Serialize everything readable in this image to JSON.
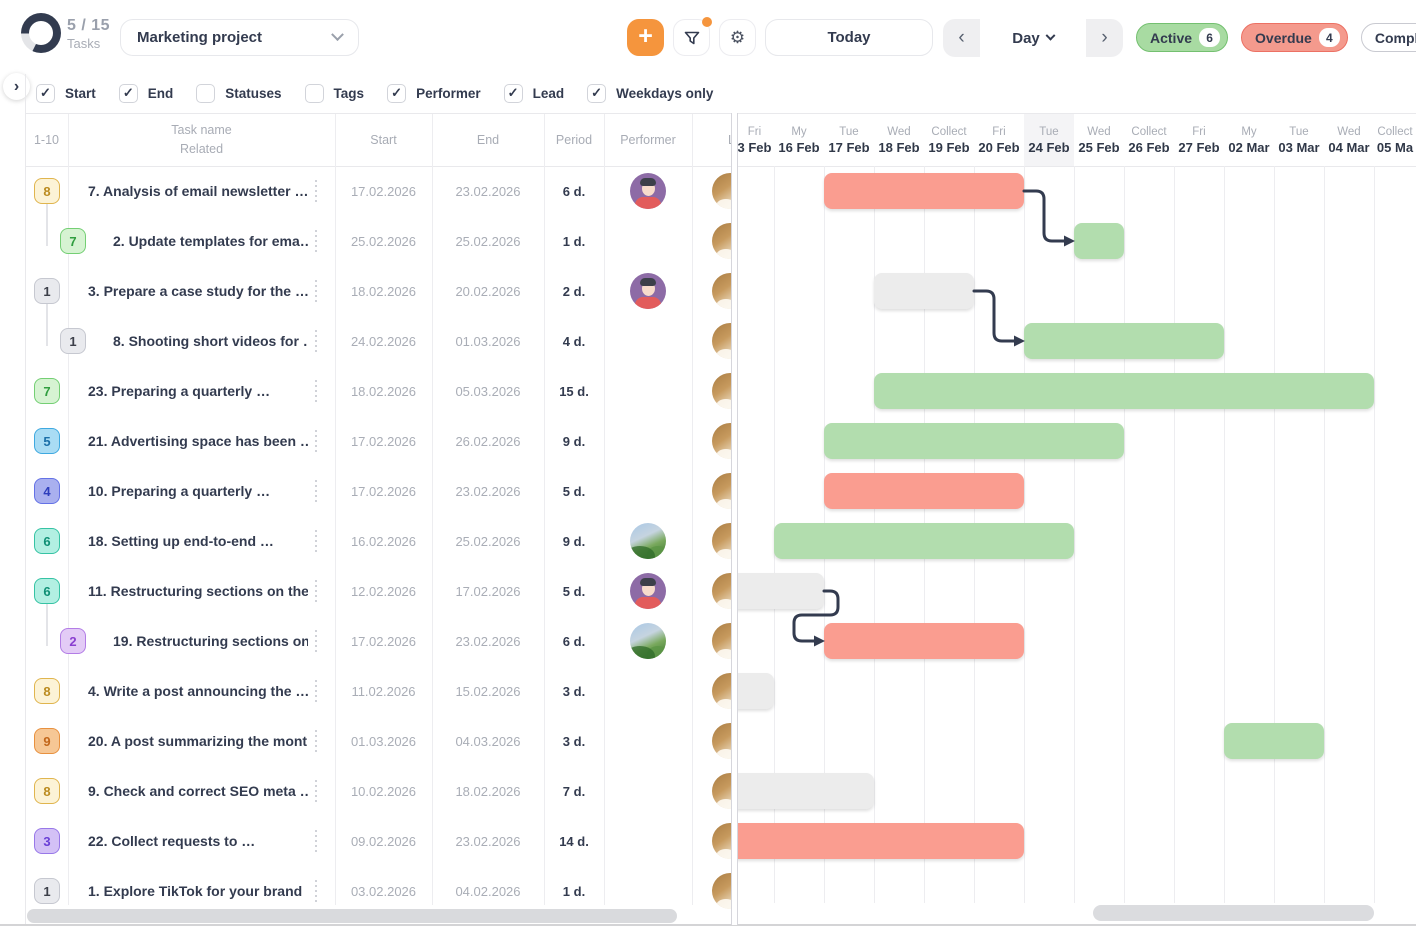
{
  "topbar": {
    "tasks_progress": "5 / 15",
    "tasks_label": "Tasks",
    "project": "Marketing project",
    "today": "Today",
    "view_mode": "Day",
    "status_filters": [
      {
        "label": "Active",
        "count": "6",
        "style": "active"
      },
      {
        "label": "Overdue",
        "count": "4",
        "style": "overdue"
      },
      {
        "label": "Comple",
        "count": "",
        "style": "completed"
      }
    ]
  },
  "filter_bar": {
    "items": [
      {
        "label": "Start",
        "checked": true
      },
      {
        "label": "End",
        "checked": true
      },
      {
        "label": "Statuses",
        "checked": false
      },
      {
        "label": "Tags",
        "checked": false
      },
      {
        "label": "Performer",
        "checked": true
      },
      {
        "label": "Lead",
        "checked": true
      },
      {
        "label": "Weekdays only",
        "checked": true
      }
    ]
  },
  "table": {
    "range_label": "1-10",
    "columns": {
      "name_line1": "Task name",
      "name_line2": "Related",
      "start": "Start",
      "end": "End",
      "period": "Period",
      "performer": "Performer",
      "lead": "Lead"
    },
    "rows": [
      {
        "num": "8",
        "badge": "yellow",
        "indent": 0,
        "title": "7. Analysis of email newsletter …",
        "start": "17.02.2026",
        "end": "23.02.2026",
        "period": "6 d.",
        "performer": "person",
        "lead": "photo"
      },
      {
        "num": "7",
        "badge": "green",
        "indent": 1,
        "title": "2. Update templates for ema…",
        "start": "25.02.2026",
        "end": "25.02.2026",
        "period": "1 d.",
        "performer": null,
        "lead": "photo"
      },
      {
        "num": "1",
        "badge": "grey",
        "indent": 0,
        "title": "3. Prepare a case study for the …",
        "start": "18.02.2026",
        "end": "20.02.2026",
        "period": "2 d.",
        "performer": "person",
        "lead": "photo"
      },
      {
        "num": "1",
        "badge": "grey",
        "indent": 1,
        "title": "8. Shooting short videos for …",
        "start": "24.02.2026",
        "end": "01.03.2026",
        "period": "4 d.",
        "performer": null,
        "lead": "photo"
      },
      {
        "num": "7",
        "badge": "green",
        "indent": 0,
        "title": "23. Preparing a quarterly …",
        "start": "18.02.2026",
        "end": "05.03.2026",
        "period": "15 d.",
        "performer": null,
        "lead": "photo"
      },
      {
        "num": "5",
        "badge": "blue",
        "indent": 0,
        "title": "21. Advertising space has been …",
        "start": "17.02.2026",
        "end": "26.02.2026",
        "period": "9 d.",
        "performer": null,
        "lead": "photo"
      },
      {
        "num": "4",
        "badge": "indigo",
        "indent": 0,
        "title": "10. Preparing a quarterly …",
        "start": "17.02.2026",
        "end": "23.02.2026",
        "period": "5 d.",
        "performer": null,
        "lead": "photo"
      },
      {
        "num": "6",
        "badge": "teal",
        "indent": 0,
        "title": "18. Setting up end-to-end …",
        "start": "16.02.2026",
        "end": "25.02.2026",
        "period": "9 d.",
        "performer": "photo",
        "lead": "photo"
      },
      {
        "num": "6",
        "badge": "teal",
        "indent": 0,
        "title": "11. Restructuring sections on the …",
        "start": "12.02.2026",
        "end": "17.02.2026",
        "period": "5 d.",
        "performer": "person",
        "lead": "photo"
      },
      {
        "num": "2",
        "badge": "violet",
        "indent": 1,
        "title": "19. Restructuring sections on …",
        "start": "17.02.2026",
        "end": "23.02.2026",
        "period": "6 d.",
        "performer": "photo",
        "lead": "photo"
      },
      {
        "num": "8",
        "badge": "yellow",
        "indent": 0,
        "title": "4. Write a post announcing the …",
        "start": "11.02.2026",
        "end": "15.02.2026",
        "period": "3 d.",
        "performer": null,
        "lead": "photo"
      },
      {
        "num": "9",
        "badge": "orange",
        "indent": 0,
        "title": "20. A post summarizing the mont…",
        "start": "01.03.2026",
        "end": "04.03.2026",
        "period": "3 d.",
        "performer": null,
        "lead": "photo"
      },
      {
        "num": "8",
        "badge": "yellow",
        "indent": 0,
        "title": "9. Check and correct SEO meta …",
        "start": "10.02.2026",
        "end": "18.02.2026",
        "period": "7 d.",
        "performer": null,
        "lead": "photo"
      },
      {
        "num": "3",
        "badge": "purple",
        "indent": 0,
        "title": "22. Collect requests to …",
        "start": "09.02.2026",
        "end": "23.02.2026",
        "period": "14 d.",
        "performer": null,
        "lead": "photo"
      },
      {
        "num": "1",
        "badge": "grey",
        "indent": 0,
        "title": "1. Explore TikTok for your brand",
        "start": "03.02.2026",
        "end": "04.02.2026",
        "period": "1 d.",
        "performer": null,
        "lead": "photo"
      }
    ]
  },
  "gantt": {
    "days": [
      {
        "dow": "Fri",
        "date": "3 Feb"
      },
      {
        "dow": "My",
        "date": "16 Feb"
      },
      {
        "dow": "Tue",
        "date": "17 Feb"
      },
      {
        "dow": "Wed",
        "date": "18 Feb"
      },
      {
        "dow": "Collect",
        "date": "19 Feb"
      },
      {
        "dow": "Fri",
        "date": "20 Feb"
      },
      {
        "dow": "Tue",
        "date": "24 Feb"
      },
      {
        "dow": "Wed",
        "date": "25 Feb"
      },
      {
        "dow": "Collect",
        "date": "26 Feb"
      },
      {
        "dow": "Fri",
        "date": "27 Feb"
      },
      {
        "dow": "My",
        "date": "02 Mar"
      },
      {
        "dow": "Tue",
        "date": "03 Mar"
      },
      {
        "dow": "Wed",
        "date": "04 Mar"
      },
      {
        "dow": "Collect",
        "date": "05 Ma"
      }
    ],
    "today_index": 6,
    "colors": {
      "done": "#b2ddae",
      "overdue": "#fa9d90",
      "pending": "#ececec",
      "connector": "#333b4f"
    },
    "bars": [
      {
        "row": 0,
        "from_col": 2,
        "to_col": 5,
        "color": "overdue"
      },
      {
        "row": 1,
        "from_col": 7,
        "to_col": 7,
        "color": "done"
      },
      {
        "row": 2,
        "from_col": 3,
        "to_col": 4,
        "color": "pending"
      },
      {
        "row": 3,
        "from_col": 6,
        "to_col": 9,
        "color": "done"
      },
      {
        "row": 4,
        "from_col": 3,
        "to_col": 12,
        "color": "done"
      },
      {
        "row": 5,
        "from_col": 2,
        "to_col": 7,
        "color": "done"
      },
      {
        "row": 6,
        "from_col": 2,
        "to_col": 5,
        "color": "overdue"
      },
      {
        "row": 7,
        "from_col": 1,
        "to_col": 6,
        "color": "done"
      },
      {
        "row": 8,
        "from_col": 0,
        "to_col": 1,
        "color": "pending"
      },
      {
        "row": 9,
        "from_col": 2,
        "to_col": 5,
        "color": "overdue"
      },
      {
        "row": 10,
        "from_col": 0,
        "to_col": 0,
        "color": "pending"
      },
      {
        "row": 11,
        "from_col": 10,
        "to_col": 11,
        "color": "done"
      },
      {
        "row": 12,
        "from_col": 0,
        "to_col": 2,
        "color": "pending"
      },
      {
        "row": 13,
        "from_col": 0,
        "to_col": 5,
        "color": "overdue"
      }
    ],
    "connectors": [
      {
        "from_row": 0,
        "from_end_col": 5,
        "to_row": 1,
        "to_start_col": 7,
        "type": "forward"
      },
      {
        "from_row": 2,
        "from_end_col": 4,
        "to_row": 3,
        "to_start_col": 6,
        "type": "forward"
      },
      {
        "from_row": 8,
        "from_end_col": 1,
        "to_row": 9,
        "to_start_col": 2,
        "type": "loopback"
      }
    ]
  }
}
